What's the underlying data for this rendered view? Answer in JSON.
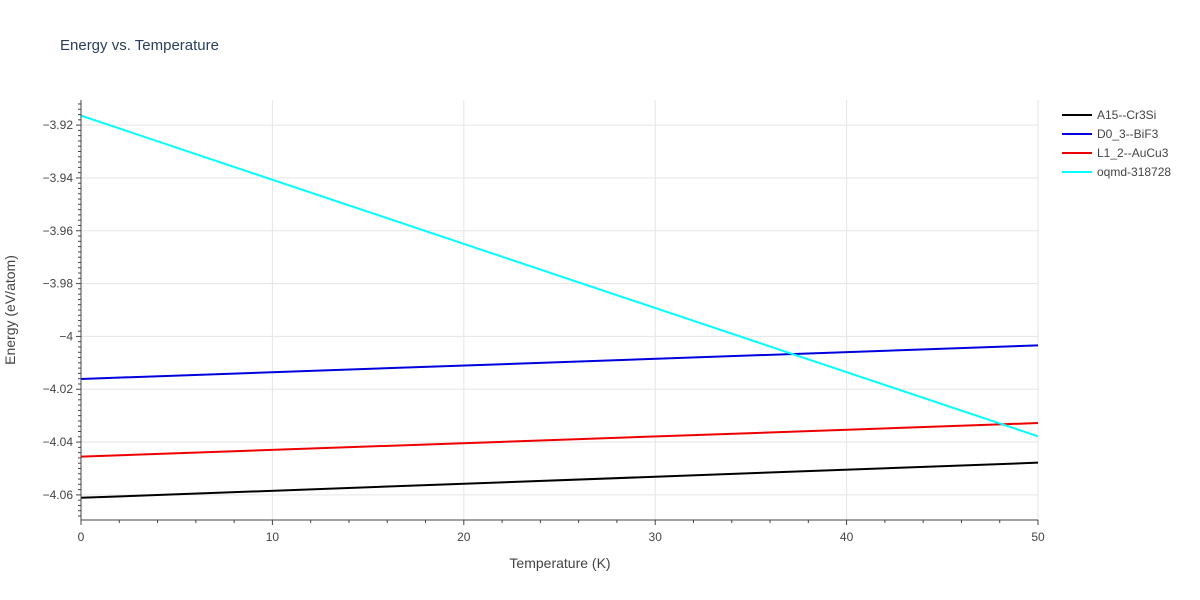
{
  "chart_data": {
    "type": "line",
    "title": "Energy vs. Temperature",
    "xlabel": "Temperature (K)",
    "ylabel": "Energy (eV/atom)",
    "xlim": [
      0,
      50
    ],
    "ylim": [
      -4.0695,
      -3.9105
    ],
    "x_ticks": [
      0,
      10,
      20,
      30,
      40,
      50
    ],
    "y_ticks": [
      -4.06,
      -4.04,
      -4.02,
      -4,
      -3.98,
      -3.96,
      -3.94,
      -3.92
    ],
    "x_tick_labels": [
      "0",
      "10",
      "20",
      "30",
      "40",
      "50"
    ],
    "y_tick_labels": [
      "−4.06",
      "−4.04",
      "−4.02",
      "−4",
      "−3.98",
      "−3.96",
      "−3.94",
      "−3.92"
    ],
    "grid": true,
    "legend_position": "top-right",
    "series": [
      {
        "name": "A15--Cr3Si",
        "color": "#000000",
        "x": [
          0,
          50
        ],
        "y": [
          -4.0611,
          -4.0478
        ]
      },
      {
        "name": "D0_3--BiF3",
        "color": "#0000dd",
        "x": [
          0,
          50
        ],
        "y": [
          -4.0161,
          -4.0034
        ]
      },
      {
        "name": "L1_2--AuCu3",
        "color": "#ee0000",
        "x": [
          0,
          50
        ],
        "y": [
          -4.0455,
          -4.0328
        ]
      },
      {
        "name": "oqmd-318728",
        "color": "#00ffff",
        "x": [
          0,
          50
        ],
        "y": [
          -3.9164,
          -4.0378
        ]
      }
    ]
  }
}
